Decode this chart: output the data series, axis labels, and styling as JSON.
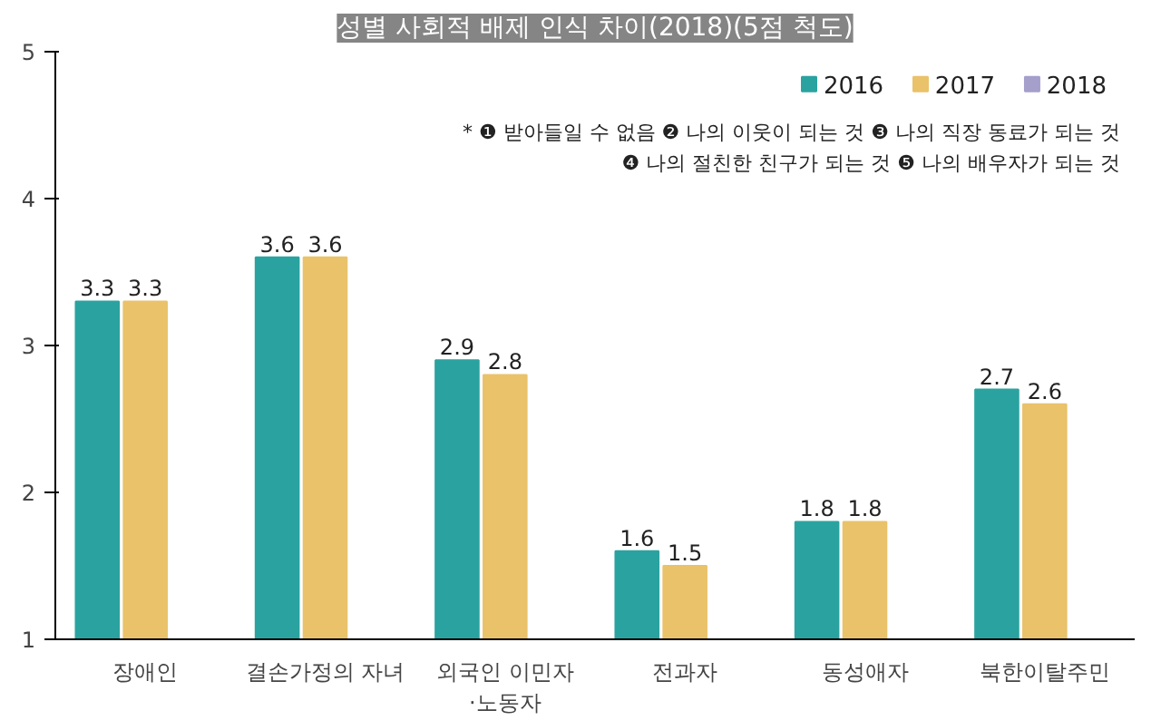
{
  "chart_data": {
    "type": "bar",
    "title": "성별 사회적 배제 인식 차이(2018)(5점 척도)",
    "categories": [
      "장애인",
      "결손가정의 자녀",
      "외국인 이민자\n·노동자",
      "전과자",
      "동성애자",
      "북한이탈주민"
    ],
    "series": [
      {
        "name": "2016",
        "color": "#2aa3a0",
        "values": [
          3.3,
          3.6,
          2.9,
          1.6,
          1.8,
          2.7
        ]
      },
      {
        "name": "2017",
        "color": "#e9c26a",
        "values": [
          3.3,
          3.6,
          2.8,
          1.5,
          1.8,
          2.6
        ]
      },
      {
        "name": "2018",
        "color": "#a49fcb",
        "values": [
          null,
          null,
          null,
          null,
          null,
          null
        ]
      }
    ],
    "ylim": [
      1,
      5
    ],
    "yticks": [
      1,
      2,
      3,
      4,
      5
    ],
    "grid": false,
    "legend": "top right",
    "data_labels": true,
    "annotations": [
      "* ❶ 받아들일 수 없음 ❷ 나의 이웃이 되는 것 ❸ 나의 직장 동료가 되는 것",
      "❹ 나의 절친한 친구가 되는 것 ❺ 나의 배우자가 되는 것"
    ]
  }
}
